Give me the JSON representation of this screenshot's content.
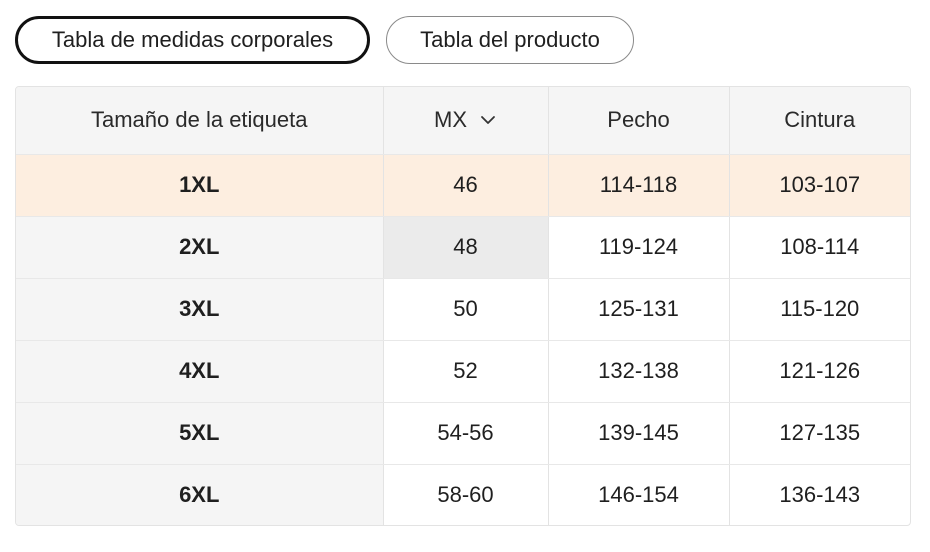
{
  "tabs": [
    {
      "label": "Tabla de medidas corporales",
      "active": true
    },
    {
      "label": "Tabla del producto",
      "active": false
    }
  ],
  "table": {
    "headers": {
      "tag_size": "Tamaño de la etiqueta",
      "region": "MX",
      "chest": "Pecho",
      "waist": "Cintura"
    },
    "rows": [
      {
        "size": "1XL",
        "mx": "46",
        "chest": "114-118",
        "waist": "103-107"
      },
      {
        "size": "2XL",
        "mx": "48",
        "chest": "119-124",
        "waist": "108-114"
      },
      {
        "size": "3XL",
        "mx": "50",
        "chest": "125-131",
        "waist": "115-120"
      },
      {
        "size": "4XL",
        "mx": "52",
        "chest": "132-138",
        "waist": "121-126"
      },
      {
        "size": "5XL",
        "mx": "54-56",
        "chest": "139-145",
        "waist": "127-135"
      },
      {
        "size": "6XL",
        "mx": "58-60",
        "chest": "146-154",
        "waist": "136-143"
      }
    ]
  },
  "icons": {
    "region_dropdown": "chevron-down-icon"
  },
  "colors": {
    "highlight_row": "#fdeee0",
    "header_bg": "#f5f5f5",
    "hover_cell": "#ebebeb",
    "active_tab_border": "#111111"
  }
}
